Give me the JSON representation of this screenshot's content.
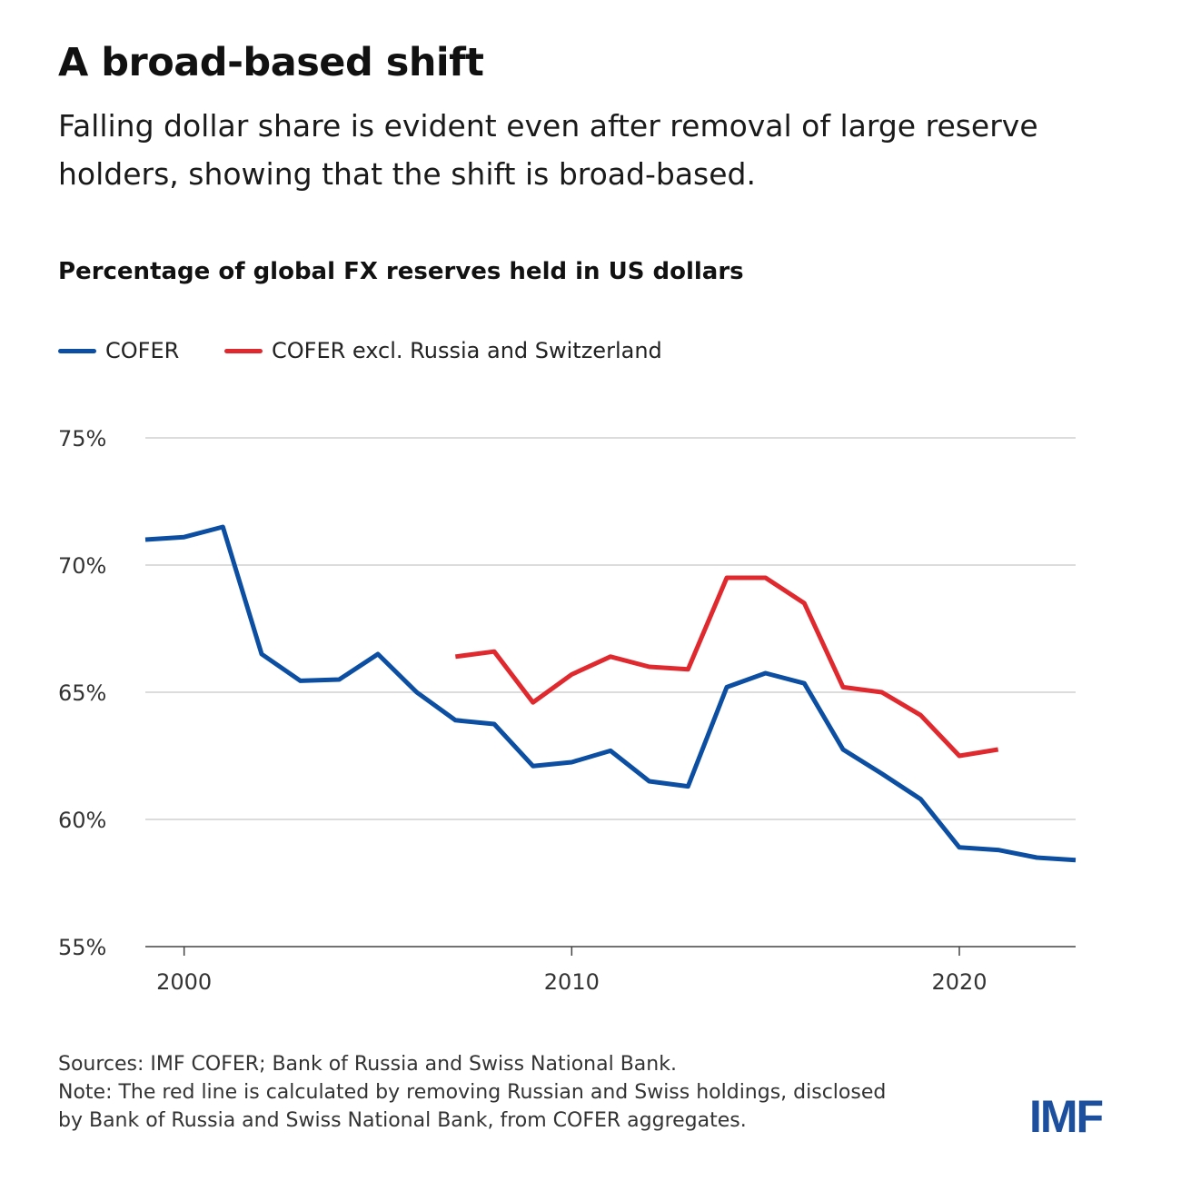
{
  "title": "A broad-based shift",
  "subtitle": "Falling dollar share is evident even after removal of large reserve holders, showing that the shift is broad-based.",
  "notes": {
    "sources": "Sources: IMF COFER; Bank of Russia and Swiss National Bank.",
    "note_line1": "Note: The red line is calculated by removing Russian and Swiss holdings, disclosed",
    "note_line2": "by Bank of Russia and Swiss National Bank, from COFER aggregates."
  },
  "logo": "IMF",
  "colors": {
    "cofer": "#0b4ea2",
    "excl": "#e0292e",
    "grid": "#d0d0d0"
  },
  "chart_data": {
    "type": "line",
    "title": "Percentage of global FX reserves held in US dollars",
    "xlim": [
      1999,
      2023
    ],
    "ylim": [
      55,
      75
    ],
    "yticks": [
      55,
      60,
      65,
      70,
      75
    ],
    "ytick_labels": [
      "55%",
      "60%",
      "65%",
      "70%",
      "75%"
    ],
    "xticks": [
      2000,
      2010,
      2020
    ],
    "xtick_labels": [
      "2000",
      "2010",
      "2020"
    ],
    "grid": "horizontal",
    "legend": "top-left",
    "series": [
      {
        "name": "COFER",
        "color": "#0b4ea2",
        "x": [
          1999,
          2000,
          2001,
          2002,
          2003,
          2004,
          2005,
          2006,
          2007,
          2008,
          2009,
          2010,
          2011,
          2012,
          2013,
          2014,
          2015,
          2016,
          2017,
          2018,
          2019,
          2020,
          2021,
          2022,
          2023
        ],
        "y": [
          71.0,
          71.1,
          71.5,
          66.5,
          65.45,
          65.5,
          66.5,
          65.0,
          63.9,
          63.75,
          62.1,
          62.25,
          62.7,
          61.5,
          61.3,
          65.2,
          65.75,
          65.35,
          62.75,
          61.8,
          60.8,
          58.9,
          58.8,
          58.5,
          58.4
        ]
      },
      {
        "name": "COFER excl. Russia and Switzerland",
        "color": "#e0292e",
        "x": [
          2007,
          2008,
          2009,
          2010,
          2011,
          2012,
          2013,
          2014,
          2015,
          2016,
          2017,
          2018,
          2019,
          2020,
          2021
        ],
        "y": [
          66.4,
          66.6,
          64.6,
          65.7,
          66.4,
          66.0,
          65.9,
          69.5,
          69.5,
          68.5,
          65.2,
          65.0,
          64.1,
          62.5,
          62.75
        ]
      }
    ]
  }
}
